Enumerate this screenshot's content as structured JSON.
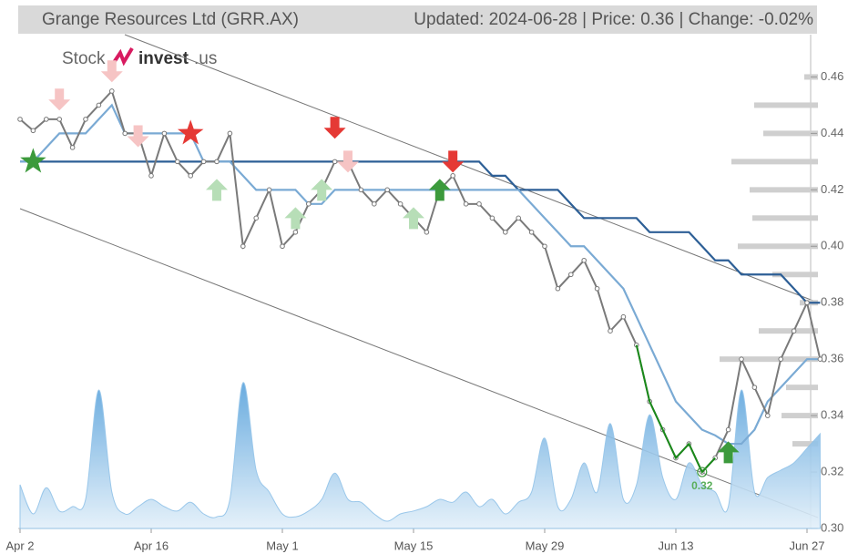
{
  "chart_data": {
    "type": "line",
    "title": "Grange Resources Ltd (GRR.AX)",
    "subtitle": "Updated: 2024-06-28 | Price: 0.36 | Change: -0.02%",
    "logo": [
      "Stock",
      "invest",
      ".us"
    ],
    "categories": [
      "Apr 2",
      null,
      null,
      null,
      null,
      null,
      null,
      null,
      null,
      null,
      "Apr 16",
      null,
      null,
      null,
      null,
      null,
      null,
      null,
      null,
      null,
      "May 1",
      null,
      null,
      null,
      null,
      null,
      null,
      null,
      null,
      null,
      "May 15",
      null,
      null,
      null,
      null,
      null,
      null,
      null,
      null,
      null,
      "May 29",
      null,
      null,
      null,
      null,
      null,
      null,
      null,
      null,
      null,
      "Jun 13",
      null,
      null,
      null,
      null,
      null,
      null,
      null,
      null,
      null,
      "Jun 27",
      null
    ],
    "series": [
      {
        "color": "#7a7a7a",
        "values": [
          0.445,
          0.441,
          0.445,
          0.445,
          0.435,
          0.445,
          0.45,
          0.455,
          0.44,
          0.44,
          0.425,
          0.44,
          0.43,
          0.425,
          0.43,
          0.43,
          0.44,
          0.4,
          0.41,
          0.42,
          0.4,
          0.405,
          0.415,
          0.42,
          0.43,
          0.43,
          0.42,
          0.415,
          0.42,
          0.415,
          0.41,
          0.405,
          0.42,
          0.425,
          0.415,
          0.415,
          0.41,
          0.405,
          0.41,
          0.405,
          0.4,
          0.385,
          0.39,
          0.395,
          0.385,
          0.37,
          0.375,
          0.365,
          0.345,
          0.335,
          0.325,
          0.33,
          0.32,
          0.325,
          0.335,
          0.36,
          0.35,
          0.34,
          0.36,
          0.37,
          0.38,
          0.36
        ]
      },
      {
        "color": "#1a8a1a",
        "values": [
          null,
          null,
          null,
          null,
          null,
          null,
          null,
          null,
          null,
          null,
          null,
          null,
          null,
          null,
          null,
          null,
          null,
          null,
          null,
          null,
          null,
          null,
          null,
          null,
          null,
          null,
          null,
          null,
          null,
          null,
          null,
          null,
          null,
          null,
          null,
          null,
          null,
          null,
          null,
          null,
          null,
          null,
          null,
          null,
          null,
          null,
          null,
          0.365,
          0.345,
          0.335,
          0.325,
          0.33,
          0.32,
          0.325,
          null,
          null,
          null,
          null,
          null,
          null,
          null,
          null
        ]
      },
      {
        "color": "#7aaad4",
        "values": [
          0.43,
          0.43,
          0.435,
          0.44,
          0.44,
          0.44,
          0.445,
          0.45,
          0.44,
          0.44,
          0.44,
          0.44,
          0.44,
          0.44,
          0.43,
          0.43,
          0.43,
          0.425,
          0.42,
          0.42,
          0.42,
          0.42,
          0.415,
          0.415,
          0.42,
          0.42,
          0.42,
          0.42,
          0.42,
          0.42,
          0.42,
          0.42,
          0.42,
          0.42,
          0.42,
          0.42,
          0.42,
          0.42,
          0.42,
          0.415,
          0.41,
          0.405,
          0.4,
          0.4,
          0.395,
          0.39,
          0.385,
          0.375,
          0.365,
          0.355,
          0.345,
          0.34,
          0.335,
          0.333,
          0.33,
          0.33,
          0.335,
          0.345,
          0.35,
          0.355,
          0.36,
          0.36
        ]
      },
      {
        "color": "#2d5f96",
        "values": [
          0.43,
          0.43,
          0.43,
          0.43,
          0.43,
          0.43,
          0.43,
          0.43,
          0.43,
          0.43,
          0.43,
          0.43,
          0.43,
          0.43,
          0.43,
          0.43,
          0.43,
          0.43,
          0.43,
          0.43,
          0.43,
          0.43,
          0.43,
          0.43,
          0.43,
          0.43,
          0.43,
          0.43,
          0.43,
          0.43,
          0.43,
          0.43,
          0.43,
          0.43,
          0.43,
          0.43,
          0.425,
          0.425,
          0.42,
          0.42,
          0.42,
          0.42,
          0.415,
          0.41,
          0.41,
          0.41,
          0.41,
          0.41,
          0.405,
          0.405,
          0.405,
          0.405,
          0.4,
          0.395,
          0.395,
          0.39,
          0.39,
          0.39,
          0.39,
          0.385,
          0.38,
          0.38
        ]
      },
      {
        "color": "#8fc1e8",
        "axis": "y2",
        "values": [
          30,
          10,
          28,
          12,
          15,
          20,
          95,
          25,
          10,
          15,
          20,
          15,
          12,
          18,
          10,
          8,
          20,
          100,
          40,
          25,
          10,
          8,
          12,
          20,
          38,
          20,
          18,
          10,
          5,
          10,
          12,
          15,
          20,
          18,
          25,
          15,
          20,
          10,
          18,
          25,
          62,
          15,
          20,
          45,
          25,
          72,
          20,
          30,
          78,
          35,
          20,
          45,
          30,
          25,
          15,
          95,
          25,
          35,
          40,
          45,
          55,
          65
        ]
      }
    ],
    "markers": [
      {
        "index": 1,
        "value": 0.43,
        "kind": "star",
        "color": "#3c9a3c"
      },
      {
        "index": 13,
        "value": 0.44,
        "kind": "star",
        "color": "#e53935"
      },
      {
        "index": 3,
        "value": 0.452,
        "kind": "down",
        "color": "#f6c4c4"
      },
      {
        "index": 7,
        "value": 0.462,
        "kind": "down",
        "color": "#f6c4c4"
      },
      {
        "index": 9,
        "value": 0.439,
        "kind": "down",
        "color": "#f6c4c4"
      },
      {
        "index": 25,
        "value": 0.43,
        "kind": "down",
        "color": "#f6c4c4"
      },
      {
        "index": 24,
        "value": 0.442,
        "kind": "down",
        "color": "#e53935"
      },
      {
        "index": 33,
        "value": 0.43,
        "kind": "down",
        "color": "#e53935"
      },
      {
        "index": 15,
        "value": 0.42,
        "kind": "up",
        "color": "#b7deb7"
      },
      {
        "index": 21,
        "value": 0.41,
        "kind": "up",
        "color": "#b7deb7"
      },
      {
        "index": 23,
        "value": 0.42,
        "kind": "up",
        "color": "#b7deb7"
      },
      {
        "index": 30,
        "value": 0.41,
        "kind": "up",
        "color": "#b7deb7"
      },
      {
        "index": 32,
        "value": 0.42,
        "kind": "up",
        "color": "#3c9a3c"
      },
      {
        "index": 54,
        "value": 0.327,
        "kind": "up",
        "color": "#3c9a3c"
      }
    ],
    "annotation": {
      "index": 52,
      "value": 0.32
    },
    "volume_profile": {
      "levels": [
        0.46,
        0.45,
        0.44,
        0.43,
        0.42,
        0.41,
        0.4,
        0.39,
        0.38,
        0.37,
        0.36,
        0.35,
        0.34,
        0.33
      ],
      "values": [
        15,
        70,
        60,
        95,
        75,
        72,
        88,
        50,
        20,
        65,
        108,
        35,
        40,
        28
      ]
    },
    "ylim": [
      0.3,
      0.475
    ],
    "yticks": [
      {
        "value": 0.3,
        "label": "0.30"
      },
      0.32,
      0.34,
      0.36,
      0.38,
      {
        "value": 0.4,
        "label": "0.40"
      },
      0.42,
      0.44,
      0.46
    ],
    "y2lim": [
      0,
      100
    ]
  }
}
